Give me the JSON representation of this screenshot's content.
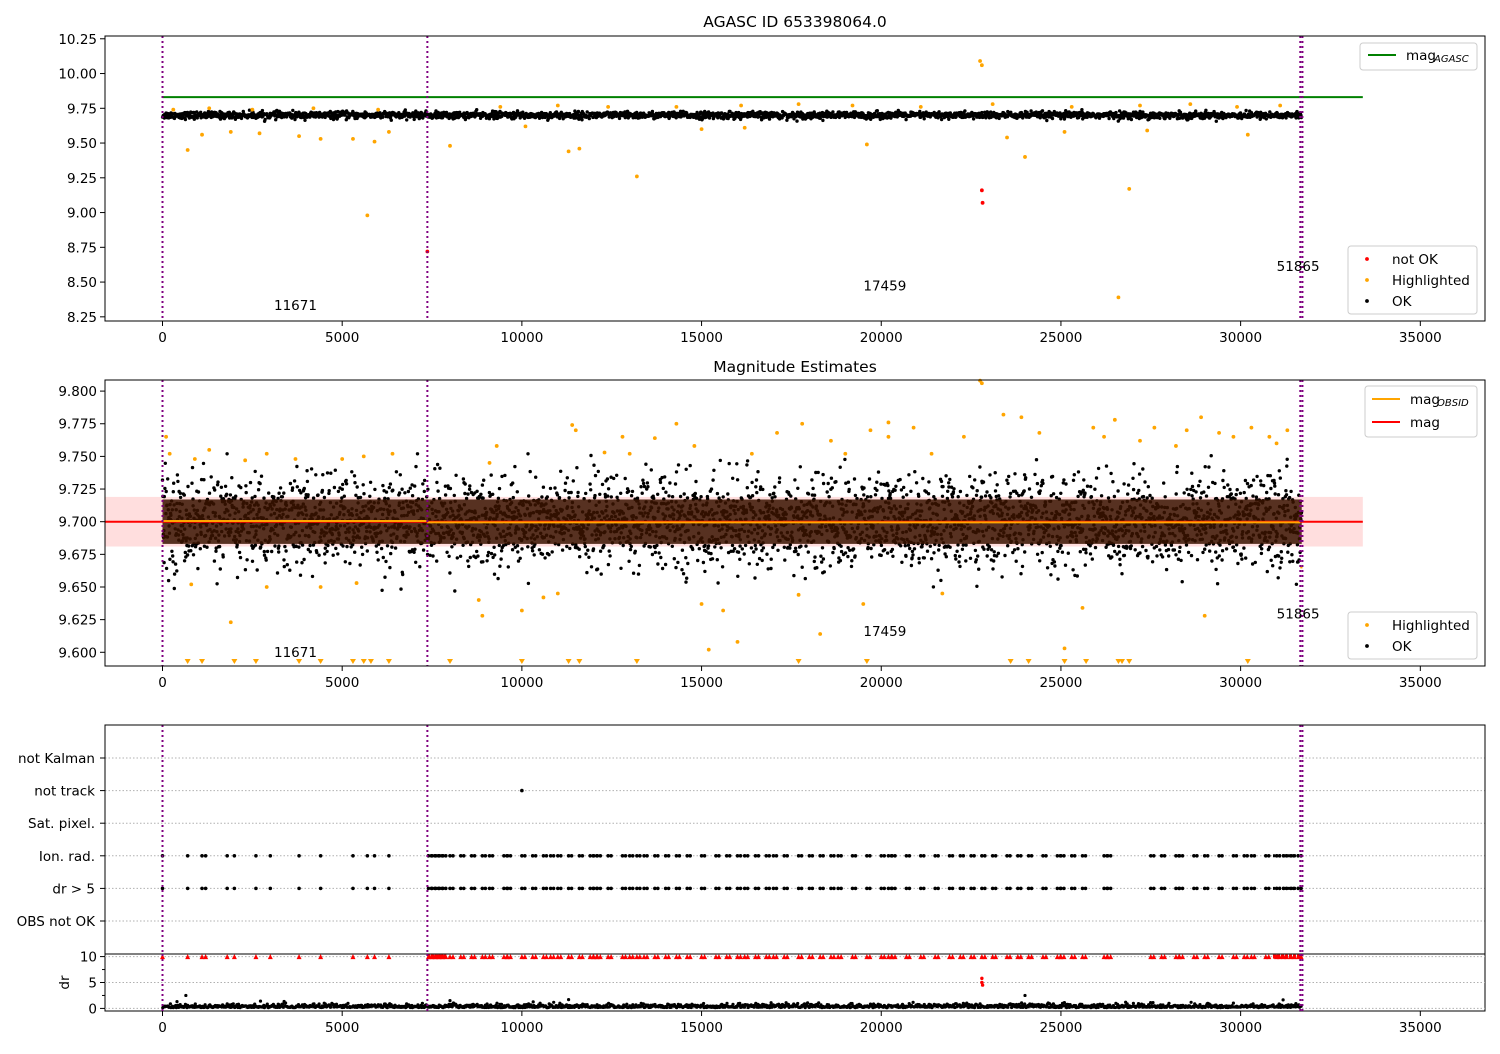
{
  "chart_data": [
    {
      "type": "scatter",
      "title": "AGASC ID 653398064.0",
      "xlim": [
        -1600,
        36800
      ],
      "ylim": [
        8.22,
        10.27
      ],
      "x_ticks": [
        0,
        5000,
        10000,
        15000,
        20000,
        25000,
        30000,
        35000
      ],
      "y_ticks": [
        8.25,
        8.5,
        8.75,
        9.0,
        9.25,
        9.5,
        9.75,
        10.0,
        10.25
      ],
      "y_tick_labels": [
        "8.25",
        "8.50",
        "8.75",
        "9.00",
        "9.25",
        "9.50",
        "9.75",
        "10.00",
        "10.25"
      ],
      "obsid_boundaries": [
        0,
        7370,
        31660,
        31720
      ],
      "obsid_labels": [
        {
          "text": "11671",
          "x": 3700,
          "y": 8.3
        },
        {
          "text": "17459",
          "x": 20100,
          "y": 8.44
        },
        {
          "text": "51865",
          "x": 31600,
          "y": 8.58
        }
      ],
      "lines": [
        {
          "name": "mag_AGASC",
          "label_main": "mag",
          "label_sub": "AGASC",
          "color": "#008000",
          "y": 9.83,
          "x": [
            0,
            33400
          ]
        }
      ],
      "series": [
        {
          "name": "not OK",
          "color": "#ff0000",
          "points": [
            [
              7370,
              8.72
            ],
            [
              22800,
              9.16
            ],
            [
              22820,
              9.07
            ]
          ]
        },
        {
          "name": "Highlighted",
          "color": "#ffa500",
          "points": [
            [
              700,
              9.45
            ],
            [
              1100,
              9.56
            ],
            [
              1900,
              9.58
            ],
            [
              2700,
              9.57
            ],
            [
              3800,
              9.55
            ],
            [
              4400,
              9.53
            ],
            [
              5300,
              9.53
            ],
            [
              5700,
              8.98
            ],
            [
              5900,
              9.51
            ],
            [
              6300,
              9.58
            ],
            [
              8000,
              9.48
            ],
            [
              11300,
              9.44
            ],
            [
              11600,
              9.46
            ],
            [
              13200,
              9.26
            ],
            [
              19600,
              9.49
            ],
            [
              22750,
              10.09
            ],
            [
              22800,
              10.06
            ],
            [
              23500,
              9.54
            ],
            [
              24000,
              9.4
            ],
            [
              26600,
              8.39
            ],
            [
              26900,
              9.17
            ],
            [
              30200,
              9.56
            ],
            [
              300,
              9.74
            ],
            [
              1300,
              9.75
            ],
            [
              2500,
              9.74
            ],
            [
              4200,
              9.75
            ],
            [
              6000,
              9.74
            ],
            [
              9400,
              9.76
            ],
            [
              11000,
              9.77
            ],
            [
              12400,
              9.76
            ],
            [
              14300,
              9.76
            ],
            [
              16100,
              9.77
            ],
            [
              17700,
              9.78
            ],
            [
              19200,
              9.77
            ],
            [
              21100,
              9.76
            ],
            [
              23100,
              9.78
            ],
            [
              25300,
              9.76
            ],
            [
              27200,
              9.77
            ],
            [
              28600,
              9.78
            ],
            [
              29900,
              9.76
            ],
            [
              31100,
              9.77
            ],
            [
              15000,
              9.6
            ],
            [
              16200,
              9.61
            ],
            [
              25100,
              9.58
            ],
            [
              27400,
              9.59
            ],
            [
              10100,
              9.62
            ]
          ]
        },
        {
          "name": "OK",
          "color": "#000000",
          "band": {
            "x_start": 0,
            "x_end": 31700,
            "y_center": 9.7,
            "y_half_width": 0.03
          }
        }
      ],
      "legend": {
        "placement": "lower right",
        "entries": [
          "not OK",
          "Highlighted",
          "OK"
        ]
      },
      "legend_top": {
        "placement": "upper right",
        "entries": [
          "mag_AGASC"
        ]
      }
    },
    {
      "type": "scatter",
      "title": "Magnitude Estimates",
      "xlim": [
        -1600,
        36800
      ],
      "ylim": [
        9.5895,
        9.8085
      ],
      "x_ticks": [
        0,
        5000,
        10000,
        15000,
        20000,
        25000,
        30000,
        35000
      ],
      "y_ticks": [
        9.6,
        9.625,
        9.65,
        9.675,
        9.7,
        9.725,
        9.75,
        9.775,
        9.8
      ],
      "y_tick_labels": [
        "9.600",
        "9.625",
        "9.650",
        "9.675",
        "9.700",
        "9.725",
        "9.750",
        "9.775",
        "9.800"
      ],
      "obsid_boundaries": [
        0,
        7370,
        31660,
        31720
      ],
      "obsid_labels": [
        {
          "text": "11671",
          "x": 3700,
          "y": 9.5965
        },
        {
          "text": "17459",
          "x": 20100,
          "y": 9.6125
        },
        {
          "text": "51865",
          "x": 31600,
          "y": 9.626
        }
      ],
      "mag": 9.7,
      "mag_band": [
        9.681,
        9.719
      ],
      "mag_obsid": [
        {
          "x": [
            0,
            7370
          ],
          "y": 9.7005
        },
        {
          "x": [
            7370,
            31660
          ],
          "y": 9.6995
        },
        {
          "x": [
            31660,
            31720
          ],
          "y": 9.665
        }
      ],
      "lines": [
        {
          "name": "mag_OBSID",
          "label_main": "mag",
          "label_sub": "OBSID",
          "color": "#ffa500"
        },
        {
          "name": "mag",
          "label_main": "mag",
          "label_sub": "",
          "color": "#ff0000",
          "x": [
            -1600,
            33400
          ]
        }
      ],
      "highlighted_below_axis_x": [
        700,
        1100,
        2000,
        2600,
        3800,
        4400,
        5300,
        5600,
        5800,
        6300,
        8000,
        10000,
        11300,
        11600,
        13200,
        17700,
        19600,
        23600,
        24100,
        25100,
        25700,
        26600,
        26700,
        26900,
        30200
      ],
      "series": [
        {
          "name": "Highlighted",
          "color": "#ffa500",
          "points": [
            [
              100,
              9.765
            ],
            [
              200,
              9.752
            ],
            [
              900,
              9.748
            ],
            [
              1300,
              9.755
            ],
            [
              2300,
              9.747
            ],
            [
              2900,
              9.752
            ],
            [
              3700,
              9.748
            ],
            [
              5000,
              9.748
            ],
            [
              5600,
              9.75
            ],
            [
              6400,
              9.752
            ],
            [
              800,
              9.652
            ],
            [
              1900,
              9.623
            ],
            [
              2900,
              9.65
            ],
            [
              4400,
              9.65
            ],
            [
              5400,
              9.653
            ],
            [
              8800,
              9.64
            ],
            [
              8900,
              9.628
            ],
            [
              9100,
              9.745
            ],
            [
              9300,
              9.758
            ],
            [
              10000,
              9.632
            ],
            [
              10600,
              9.642
            ],
            [
              11000,
              9.645
            ],
            [
              11400,
              9.774
            ],
            [
              11500,
              9.77
            ],
            [
              12300,
              9.753
            ],
            [
              12800,
              9.765
            ],
            [
              13000,
              9.752
            ],
            [
              13700,
              9.764
            ],
            [
              14300,
              9.775
            ],
            [
              14800,
              9.758
            ],
            [
              15000,
              9.637
            ],
            [
              15200,
              9.602
            ],
            [
              15600,
              9.632
            ],
            [
              16000,
              9.608
            ],
            [
              16400,
              9.752
            ],
            [
              17100,
              9.768
            ],
            [
              17700,
              9.644
            ],
            [
              17800,
              9.775
            ],
            [
              18300,
              9.614
            ],
            [
              18600,
              9.762
            ],
            [
              19000,
              9.752
            ],
            [
              19500,
              9.637
            ],
            [
              19700,
              9.77
            ],
            [
              20200,
              9.765
            ],
            [
              20200,
              9.776
            ],
            [
              20900,
              9.772
            ],
            [
              21400,
              9.752
            ],
            [
              21700,
              9.645
            ],
            [
              22300,
              9.765
            ],
            [
              22750,
              9.808
            ],
            [
              22800,
              9.806
            ],
            [
              23400,
              9.782
            ],
            [
              23900,
              9.78
            ],
            [
              24400,
              9.768
            ],
            [
              25100,
              9.603
            ],
            [
              25600,
              9.634
            ],
            [
              25900,
              9.772
            ],
            [
              26200,
              9.765
            ],
            [
              26500,
              9.778
            ],
            [
              27200,
              9.762
            ],
            [
              27600,
              9.772
            ],
            [
              28200,
              9.758
            ],
            [
              28500,
              9.77
            ],
            [
              28900,
              9.78
            ],
            [
              29000,
              9.628
            ],
            [
              29400,
              9.768
            ],
            [
              29800,
              9.765
            ],
            [
              30300,
              9.772
            ],
            [
              30800,
              9.765
            ],
            [
              31000,
              9.76
            ],
            [
              31300,
              9.77
            ]
          ]
        },
        {
          "name": "OK",
          "color": "#000000",
          "band": {
            "x_start": 0,
            "x_end": 31700,
            "y_center": 9.7,
            "y_half_width": 0.03
          }
        }
      ],
      "legend": {
        "placement": "lower right",
        "entries": [
          "Highlighted",
          "OK"
        ]
      },
      "legend_top": {
        "placement": "upper right",
        "entries": [
          "mag_OBSID",
          "mag"
        ]
      }
    },
    {
      "type": "scatter",
      "title": "",
      "xlim": [
        -1600,
        36800
      ],
      "x_ticks": [
        0,
        5000,
        10000,
        15000,
        20000,
        25000,
        30000,
        35000
      ],
      "obsid_boundaries": [
        0,
        7370,
        31660,
        31720
      ],
      "flag_rows": [
        "not Kalman",
        "not track",
        "Sat. pixel.",
        "Ion. rad.",
        "dr > 5",
        "OBS not OK"
      ],
      "flags": {
        "not track": [
          10000
        ],
        "Ion. rad.": [
          0,
          700,
          1100,
          1200,
          1800,
          2000,
          2600,
          3000,
          3800,
          4400,
          5300,
          5700,
          5900,
          6300,
          7400,
          7500,
          7600,
          7700,
          7800,
          8000,
          8300,
          8600,
          8900,
          9100,
          9500,
          9600,
          10000,
          10300,
          10600,
          10800,
          11000,
          11300,
          11600,
          11900,
          12000,
          12100,
          12400,
          12800,
          13000,
          13200,
          13400,
          13700,
          14000,
          14300,
          14600,
          15000,
          15400,
          15700,
          16000,
          16200,
          16500,
          16800,
          17000,
          17300,
          17700,
          18000,
          18300,
          18600,
          18800,
          19200,
          19600,
          20000,
          20200,
          20300,
          20700,
          21100,
          21500,
          21900,
          22200,
          22500,
          22800,
          23100,
          23500,
          23800,
          24100,
          24500,
          24900,
          25000,
          25300,
          25600,
          26200,
          26300,
          27500,
          27800,
          28200,
          28300,
          28700,
          29000,
          29400,
          29800,
          30100,
          30300,
          30700,
          31000,
          31200,
          31400,
          31600
        ],
        "dr > 5": [
          0,
          700,
          1100,
          1200,
          1800,
          2000,
          2600,
          3000,
          3800,
          4400,
          5300,
          5700,
          5900,
          6300,
          7400,
          7500,
          7600,
          7700,
          7800,
          8000,
          8300,
          8600,
          8900,
          9100,
          9500,
          9600,
          10000,
          10300,
          10600,
          10800,
          11000,
          11300,
          11600,
          11900,
          12000,
          12100,
          12400,
          12800,
          13000,
          13200,
          13400,
          13700,
          14000,
          14300,
          14600,
          15000,
          15400,
          15700,
          16000,
          16200,
          16500,
          16800,
          17000,
          17300,
          17700,
          18000,
          18300,
          18600,
          18800,
          19200,
          19600,
          20000,
          20200,
          20300,
          20700,
          21100,
          21500,
          21900,
          22200,
          22500,
          22800,
          23100,
          23500,
          23800,
          24100,
          24500,
          24900,
          25000,
          25300,
          25600,
          26200,
          26300,
          27500,
          27800,
          28200,
          28300,
          28700,
          29000,
          29400,
          29800,
          30100,
          30300,
          30700,
          31000,
          31200,
          31400,
          31600
        ]
      },
      "dr_panel": {
        "ylabel": "dr",
        "ylim": [
          -0.5,
          10.5
        ],
        "y_ticks": [
          0,
          5,
          10
        ],
        "y_tick_labels": [
          "0",
          "5",
          "10"
        ],
        "clipped_value": 10,
        "clipped_x": [
          0,
          700,
          1100,
          1200,
          1800,
          2000,
          2600,
          3000,
          3800,
          4400,
          5300,
          5700,
          5900,
          6300,
          7400,
          7500,
          7600,
          7700,
          7800,
          8000,
          8300,
          8600,
          8900,
          9100,
          9500,
          9600,
          10000,
          10300,
          10600,
          10800,
          11000,
          11300,
          11600,
          11900,
          12000,
          12100,
          12400,
          12800,
          13000,
          13200,
          13400,
          13700,
          14000,
          14300,
          14600,
          15000,
          15400,
          15700,
          16000,
          16200,
          16500,
          16800,
          17000,
          17300,
          17700,
          18000,
          18300,
          18600,
          18800,
          19200,
          19600,
          20000,
          20200,
          20300,
          20700,
          21100,
          21500,
          21900,
          22200,
          22500,
          22800,
          23100,
          23500,
          23800,
          24100,
          24500,
          24900,
          25000,
          25300,
          25600,
          26200,
          26300,
          27500,
          27800,
          28200,
          28300,
          28700,
          29000,
          29400,
          29800,
          30100,
          30300,
          30700,
          31000,
          31200,
          31400,
          31600
        ],
        "red_points": [
          [
            22800,
            5.8
          ],
          [
            22800,
            5.0
          ],
          [
            22820,
            4.5
          ]
        ],
        "outlier_points": [
          [
            650,
            2.5
          ],
          [
            24000,
            2.5
          ],
          [
            8000,
            1.5
          ],
          [
            11300,
            1.7
          ],
          [
            26800,
            1.2
          ],
          [
            4500,
            1.0
          ]
        ]
      }
    }
  ]
}
